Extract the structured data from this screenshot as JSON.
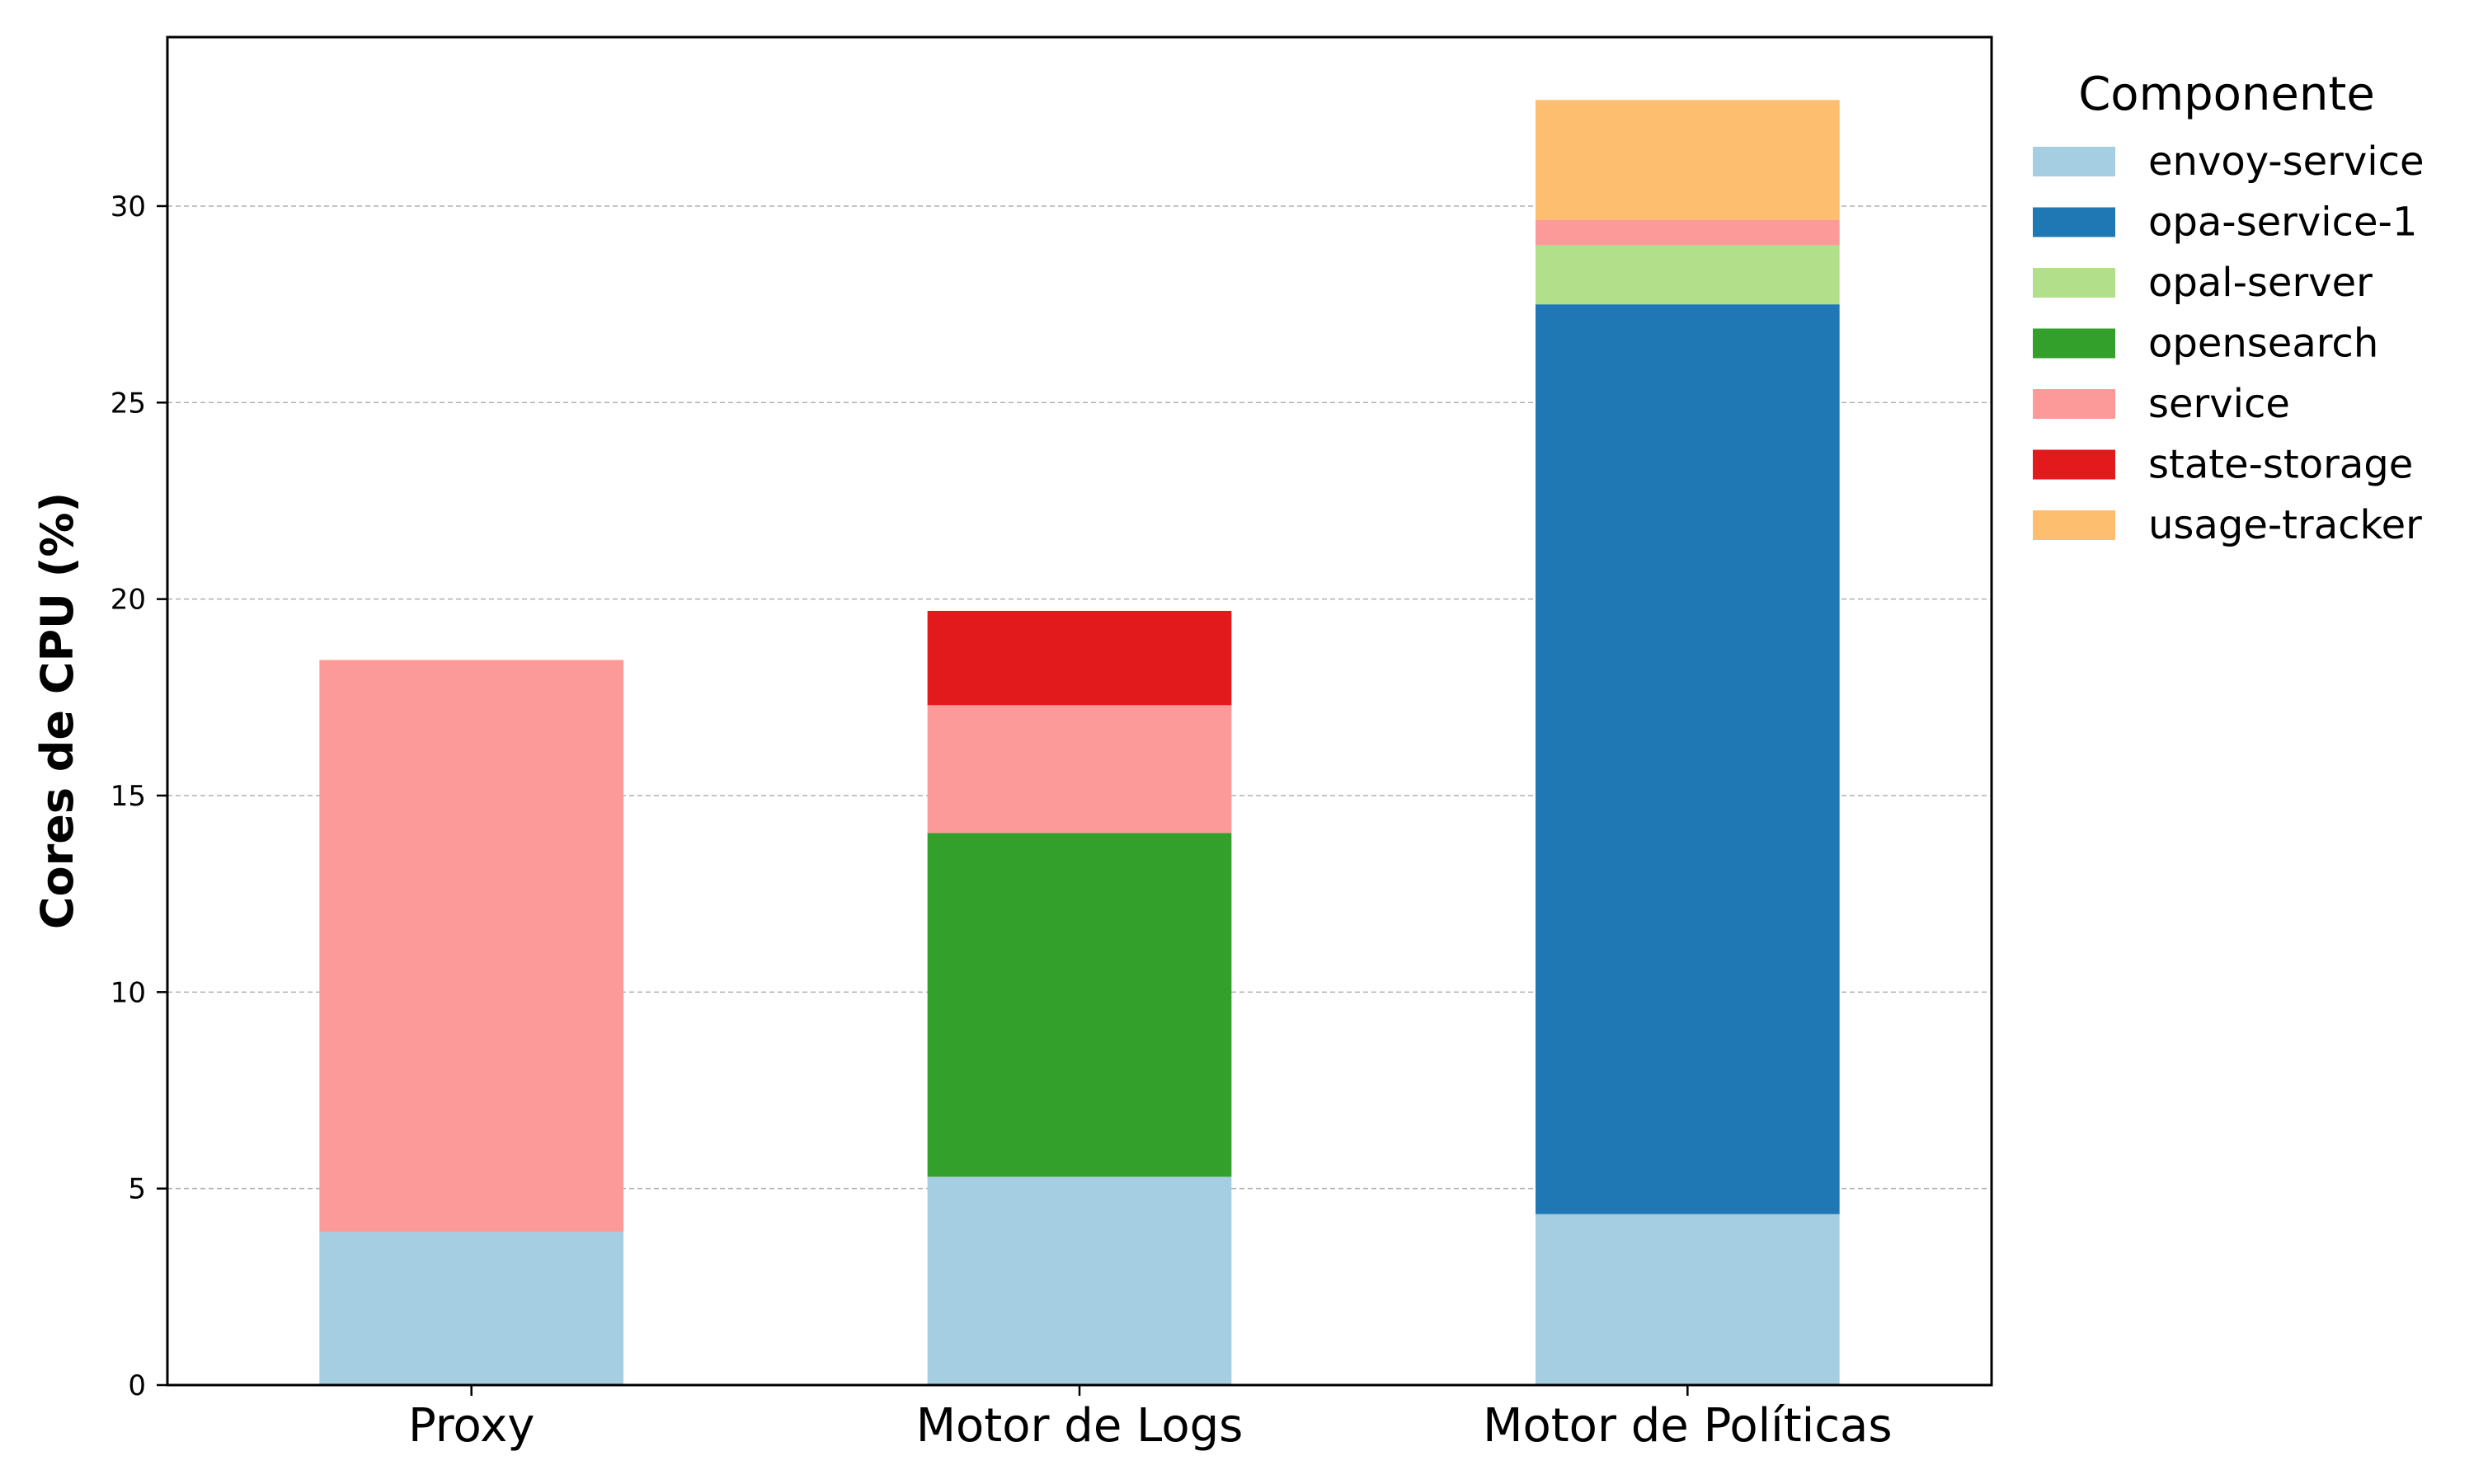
{
  "chart_data": {
    "type": "bar",
    "stacked": true,
    "categories": [
      "Proxy",
      "Motor de Logs",
      "Motor de Políticas"
    ],
    "ylabel": "Cores de CPU (%)",
    "xlabel": "",
    "ylim": [
      0,
      34.3
    ],
    "yticks": [
      0,
      5,
      10,
      15,
      20,
      25,
      30
    ],
    "grid": "y, dashed",
    "legend": {
      "title": "Componente",
      "placement": "outside right"
    },
    "series": [
      {
        "name": "envoy-service",
        "color": "#a6cee3",
        "values": [
          3.9,
          5.3,
          4.35
        ]
      },
      {
        "name": "opa-service-1",
        "color": "#1f78b4",
        "values": [
          0,
          0,
          23.15
        ]
      },
      {
        "name": "opal-server",
        "color": "#b2df8a",
        "values": [
          0,
          0,
          1.5
        ]
      },
      {
        "name": "opensearch",
        "color": "#33a02c",
        "values": [
          0,
          8.75,
          0
        ]
      },
      {
        "name": "service",
        "color": "#fb9a99",
        "values": [
          14.55,
          3.25,
          0.65
        ]
      },
      {
        "name": "state-storage",
        "color": "#e31a1c",
        "values": [
          0,
          2.4,
          0
        ]
      },
      {
        "name": "usage-tracker",
        "color": "#fdbf6f",
        "values": [
          0,
          0,
          3.05
        ]
      }
    ]
  }
}
